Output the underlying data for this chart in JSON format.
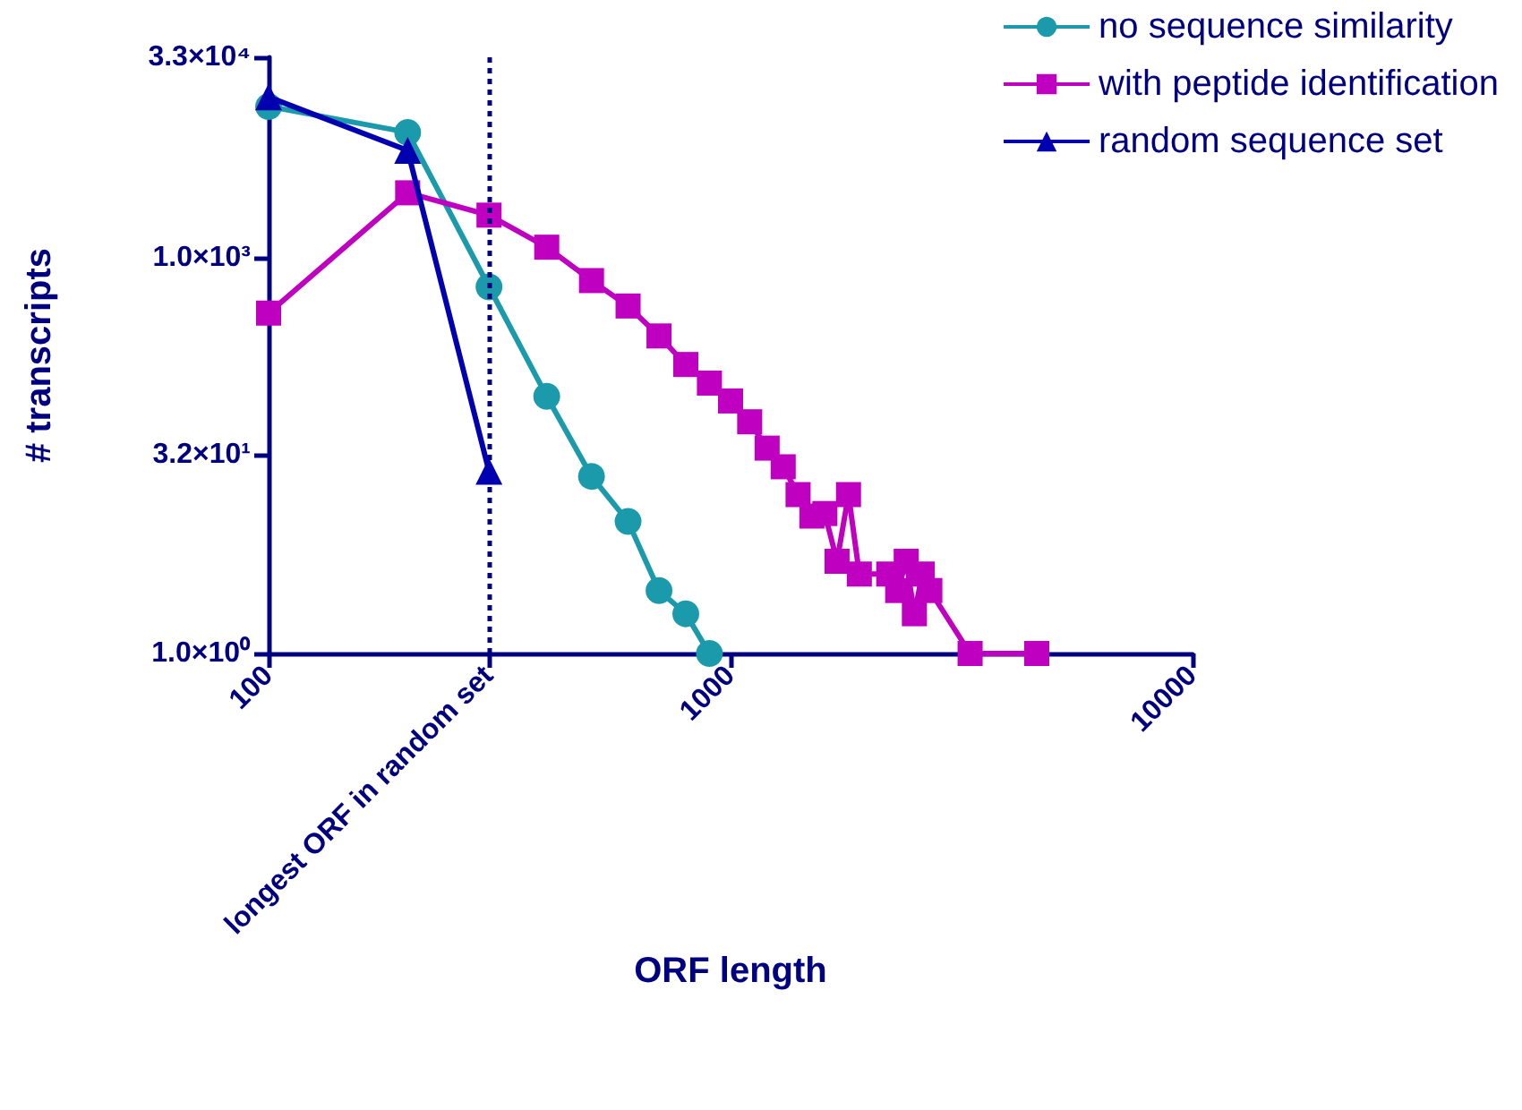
{
  "chart_data": {
    "type": "line",
    "xlabel": "ORF length",
    "ylabel": "# transcripts",
    "log": "xy",
    "grid": false,
    "legend": "top right",
    "line_style": "solid",
    "xlim": [
      100,
      10000
    ],
    "xticks": [
      100,
      {
        "value": 300,
        "label": "longest ORF in random set"
      },
      1000,
      10000
    ],
    "ylim": [
      1,
      33000
    ],
    "yticks": [
      {
        "value": 1,
        "label": "1.0×10⁰"
      },
      {
        "value": 32,
        "label": "3.2×10¹"
      },
      {
        "value": 1000,
        "label": "1.0×10³"
      },
      {
        "value": 33000,
        "label": "3.3×10⁴"
      }
    ],
    "ref_lines": [
      {
        "axis": "x",
        "value": 300,
        "color": "#000080",
        "line_style": "dotted"
      }
    ],
    "series": [
      {
        "name": "no sequence similarity",
        "color": "#1a9aaa",
        "marker": "circle",
        "x": [
          100,
          200,
          300,
          400,
          500,
          600,
          700,
          800,
          900
        ],
        "values": [
          14000,
          8900,
          600,
          89,
          22,
          10,
          3,
          2,
          1
        ]
      },
      {
        "name": "with peptide identification",
        "color": "#c000c0",
        "marker": "square",
        "x": [
          100,
          200,
          300,
          400,
          500,
          600,
          700,
          800,
          900,
          1000,
          1100,
          1200,
          1300,
          1400,
          1500,
          1600,
          1700,
          1800,
          1900,
          2200,
          2300,
          2400,
          2500,
          2600,
          2700,
          3300,
          4600
        ],
        "values": [
          380,
          3100,
          2100,
          1200,
          670,
          430,
          255,
          155,
          112,
          82,
          57,
          36,
          26,
          16,
          11,
          11.5,
          5,
          16,
          4,
          4,
          3,
          5,
          2,
          4,
          3,
          1,
          1
        ]
      },
      {
        "name": "random sequence set",
        "color": "#0000b0",
        "marker": "triangle",
        "x": [
          100,
          200,
          300
        ],
        "values": [
          16500,
          6500,
          24
        ]
      }
    ]
  }
}
